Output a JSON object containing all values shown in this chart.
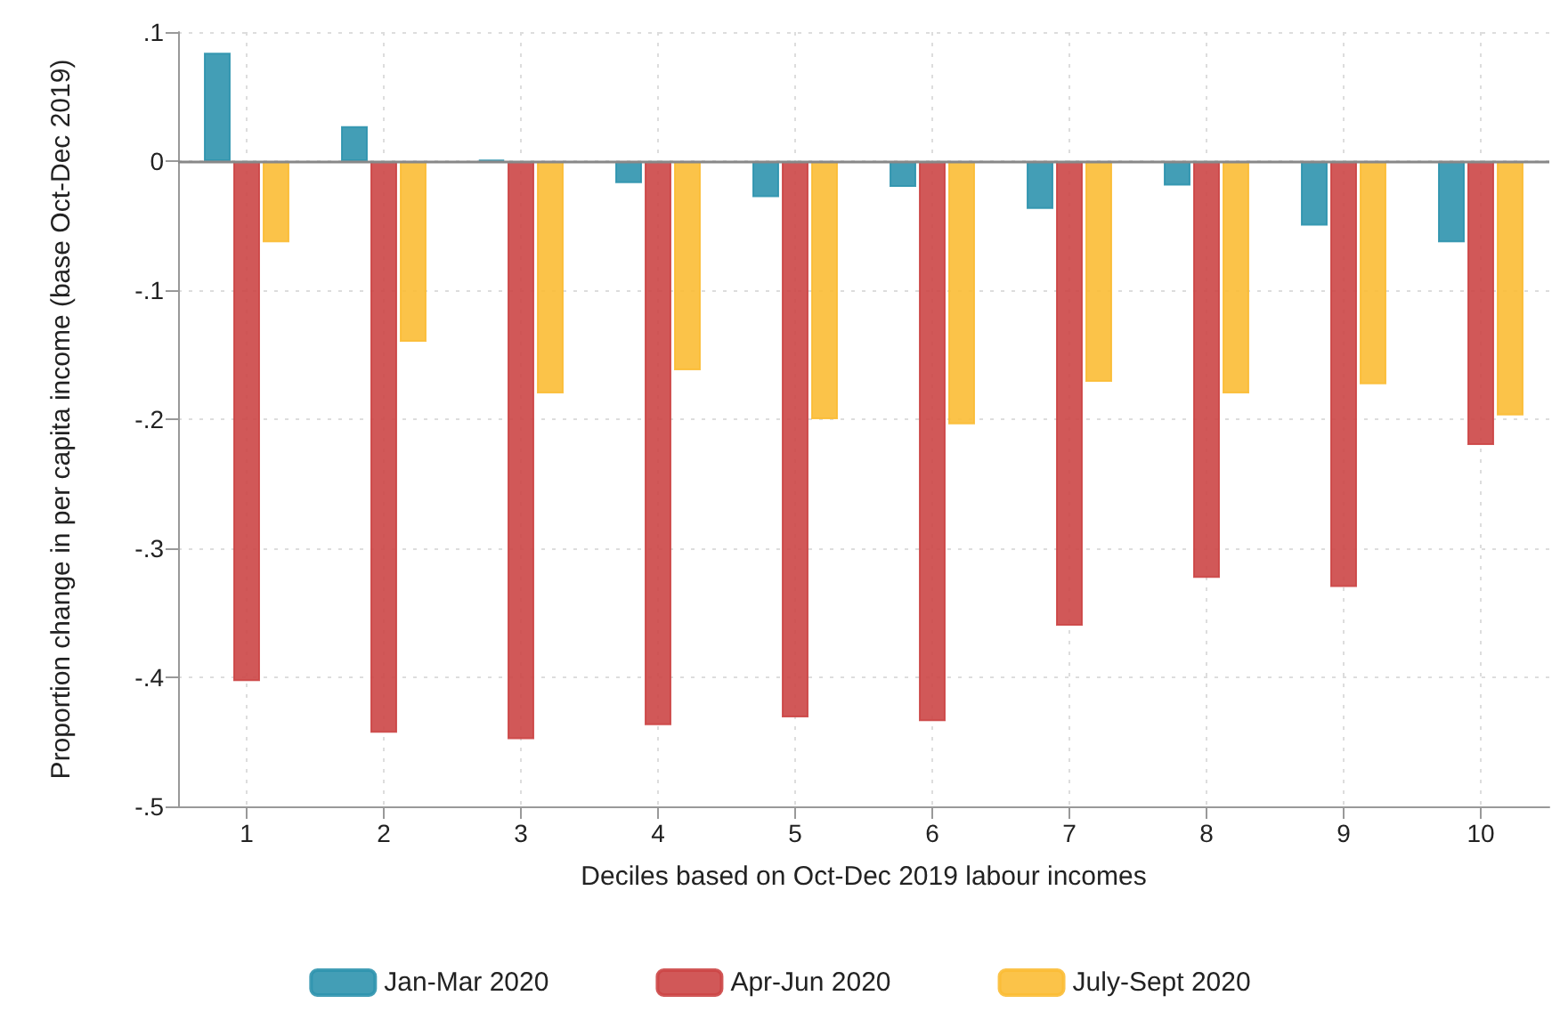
{
  "chart_data": {
    "type": "bar",
    "xlabel": "Deciles based on Oct-Dec 2019 labour incomes",
    "ylabel": "Proportion change in per capita income (base Oct-Dec 2019)",
    "categories": [
      "1",
      "2",
      "3",
      "4",
      "5",
      "6",
      "7",
      "8",
      "9",
      "10"
    ],
    "series": [
      {
        "name": "Jan-Mar 2020",
        "color": "#2f93ae",
        "values": [
          0.084,
          0.027,
          0.001,
          -0.017,
          -0.028,
          -0.02,
          -0.037,
          -0.019,
          -0.05,
          -0.063
        ]
      },
      {
        "name": "Apr-Jun 2020",
        "color": "#cc4646",
        "values": [
          -0.403,
          -0.443,
          -0.448,
          -0.437,
          -0.431,
          -0.434,
          -0.36,
          -0.323,
          -0.33,
          -0.22
        ]
      },
      {
        "name": "July-Sept 2020",
        "color": "#fbbd35",
        "values": [
          -0.063,
          -0.14,
          -0.18,
          -0.162,
          -0.2,
          -0.204,
          -0.171,
          -0.18,
          -0.173,
          -0.197
        ]
      }
    ],
    "ylim": [
      -0.5,
      0.1
    ],
    "yticks": [
      {
        "value": 0.1,
        "label": ".1"
      },
      0,
      {
        "value": -0.1,
        "label": "-.1"
      },
      {
        "value": -0.2,
        "label": "-.2"
      },
      {
        "value": -0.3,
        "label": "-.3"
      },
      {
        "value": -0.4,
        "label": "-.4"
      },
      {
        "value": -0.5,
        "label": "-.5"
      }
    ],
    "grid": true,
    "legend": "bottom"
  }
}
